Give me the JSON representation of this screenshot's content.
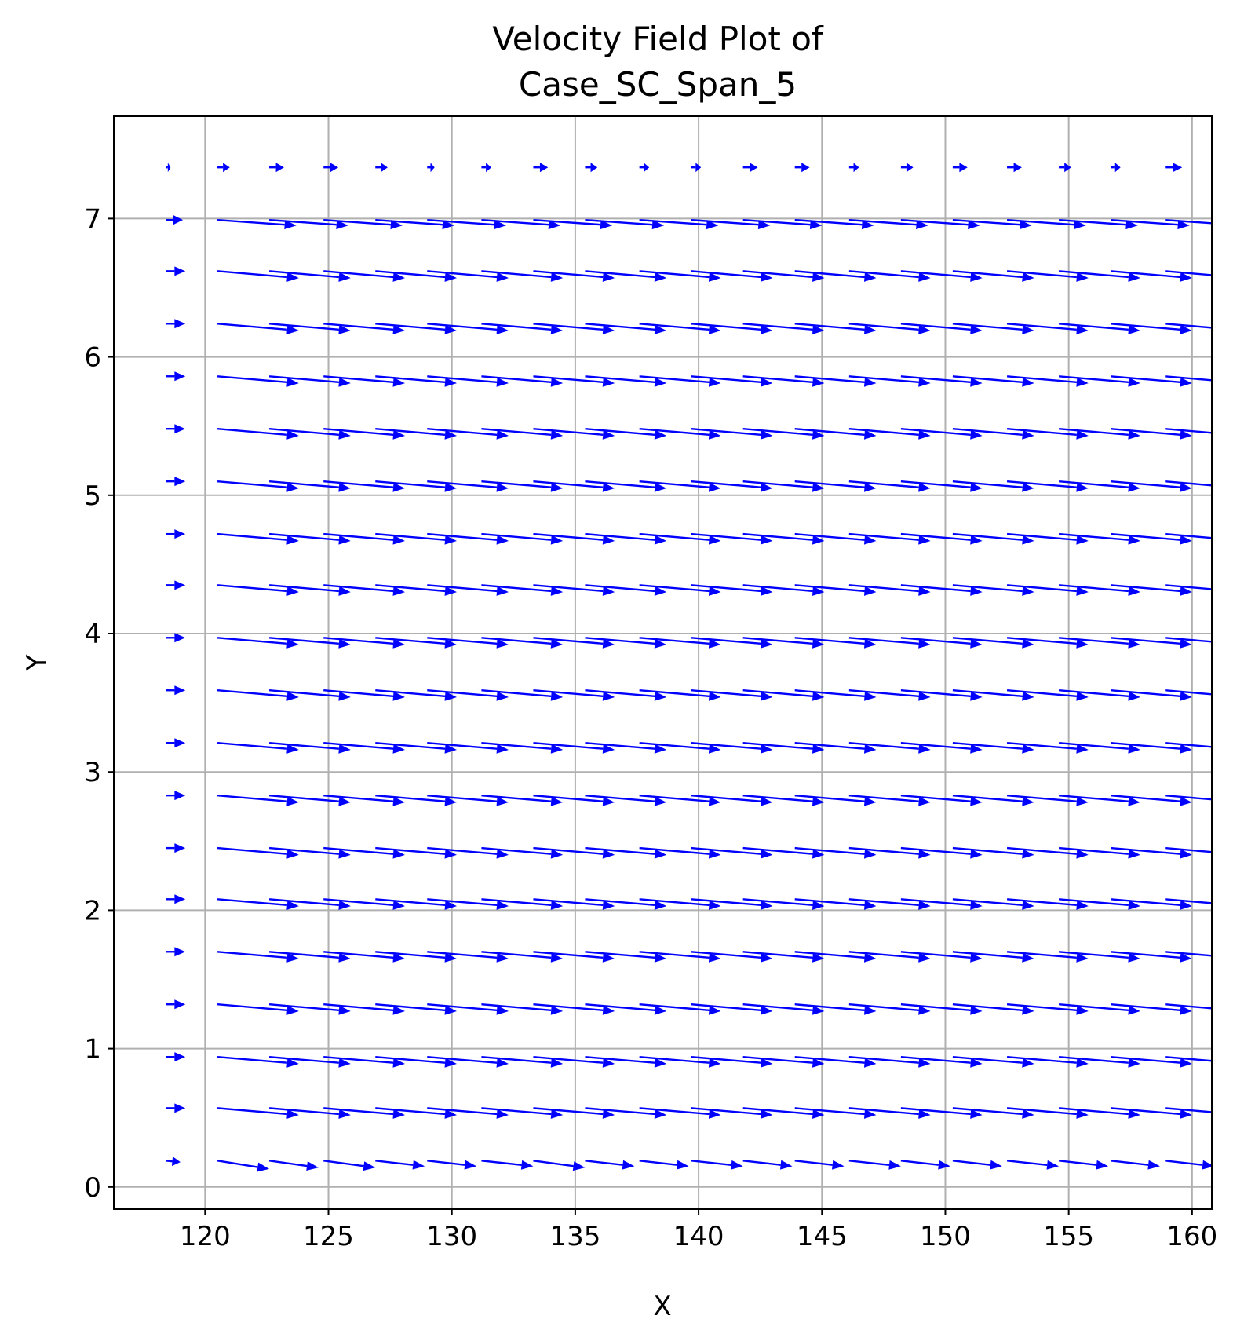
{
  "chart_data": {
    "type": "quiver",
    "title": [
      "Velocity Field Plot of",
      "Case_SC_Span_5"
    ],
    "xlabel": "X",
    "ylabel": "Y",
    "xlim": [
      116.3,
      160.8
    ],
    "ylim": [
      -0.16,
      7.74
    ],
    "grid": true,
    "arrow_color": "#0000ff",
    "grid_color": "#b0b0b0",
    "xticks": [
      120,
      125,
      130,
      135,
      140,
      145,
      150,
      155,
      160
    ],
    "xtick_labels": [
      "120",
      "125",
      "130",
      "135",
      "140",
      "145",
      "150",
      "155",
      "160"
    ],
    "yticks": [
      0,
      1,
      2,
      3,
      4,
      5,
      6,
      7
    ],
    "ytick_labels": [
      "0",
      "1",
      "2",
      "3",
      "4",
      "5",
      "6",
      "7"
    ],
    "x_positions": [
      118.4,
      120.5,
      122.6,
      124.8,
      126.9,
      129.0,
      131.2,
      133.3,
      135.4,
      137.6,
      139.7,
      141.8,
      143.9,
      146.1,
      148.2,
      150.3,
      152.5,
      154.6,
      156.7,
      158.9
    ],
    "y_positions": [
      0.19,
      0.57,
      0.94,
      1.32,
      1.7,
      2.08,
      2.45,
      2.83,
      3.21,
      3.59,
      3.97,
      4.35,
      4.72,
      5.1,
      5.48,
      5.86,
      6.24,
      6.62,
      6.99,
      7.37
    ],
    "rows": [
      {
        "u": [
          0.6,
          2.1,
          2.0,
          2.1,
          2.0,
          2.0,
          2.1,
          2.1,
          2.0,
          2.0,
          2.1,
          2.0,
          2.0,
          2.1,
          2.0,
          2.0,
          2.1,
          2.0,
          2.0,
          2.0
        ],
        "v": [
          -0.01,
          -0.06,
          -0.05,
          -0.05,
          -0.04,
          -0.04,
          -0.04,
          -0.05,
          -0.04,
          -0.04,
          -0.04,
          -0.04,
          -0.04,
          -0.04,
          -0.04,
          -0.04,
          -0.04,
          -0.04,
          -0.04,
          -0.04
        ]
      },
      {
        "u": [
          0.8,
          3.3,
          3.3,
          3.3,
          3.3,
          3.3,
          3.3,
          3.3,
          3.3,
          3.3,
          3.3,
          3.3,
          3.3,
          3.3,
          3.3,
          3.3,
          3.3,
          3.3,
          3.3,
          3.3
        ],
        "v": [
          0.0,
          -0.05,
          -0.05,
          -0.05,
          -0.05,
          -0.05,
          -0.05,
          -0.05,
          -0.05,
          -0.05,
          -0.05,
          -0.05,
          -0.05,
          -0.05,
          -0.05,
          -0.05,
          -0.05,
          -0.05,
          -0.05,
          -0.05
        ]
      },
      {
        "u": [
          0.8,
          3.3,
          3.3,
          3.3,
          3.3,
          3.3,
          3.3,
          3.3,
          3.3,
          3.3,
          3.3,
          3.3,
          3.3,
          3.3,
          3.3,
          3.3,
          3.3,
          3.3,
          3.3,
          3.3
        ],
        "v": [
          0.0,
          -0.05,
          -0.05,
          -0.05,
          -0.05,
          -0.05,
          -0.05,
          -0.05,
          -0.05,
          -0.05,
          -0.05,
          -0.05,
          -0.05,
          -0.05,
          -0.05,
          -0.05,
          -0.05,
          -0.05,
          -0.05,
          -0.05
        ]
      },
      {
        "u": [
          0.8,
          3.3,
          3.3,
          3.3,
          3.3,
          3.3,
          3.3,
          3.3,
          3.3,
          3.3,
          3.3,
          3.3,
          3.3,
          3.3,
          3.3,
          3.3,
          3.3,
          3.3,
          3.3,
          3.3
        ],
        "v": [
          0.0,
          -0.05,
          -0.05,
          -0.05,
          -0.05,
          -0.05,
          -0.05,
          -0.05,
          -0.05,
          -0.05,
          -0.05,
          -0.05,
          -0.05,
          -0.05,
          -0.05,
          -0.05,
          -0.05,
          -0.05,
          -0.05,
          -0.05
        ]
      },
      {
        "u": [
          0.8,
          3.3,
          3.3,
          3.3,
          3.3,
          3.3,
          3.3,
          3.3,
          3.3,
          3.3,
          3.3,
          3.3,
          3.3,
          3.3,
          3.3,
          3.3,
          3.3,
          3.3,
          3.3,
          3.3
        ],
        "v": [
          0.0,
          -0.05,
          -0.05,
          -0.05,
          -0.05,
          -0.05,
          -0.05,
          -0.05,
          -0.05,
          -0.05,
          -0.05,
          -0.05,
          -0.05,
          -0.05,
          -0.05,
          -0.05,
          -0.05,
          -0.05,
          -0.05,
          -0.05
        ]
      },
      {
        "u": [
          0.8,
          3.3,
          3.3,
          3.3,
          3.3,
          3.3,
          3.3,
          3.3,
          3.3,
          3.3,
          3.3,
          3.3,
          3.3,
          3.3,
          3.3,
          3.3,
          3.3,
          3.3,
          3.3,
          3.3
        ],
        "v": [
          0.0,
          -0.05,
          -0.05,
          -0.05,
          -0.05,
          -0.05,
          -0.05,
          -0.05,
          -0.05,
          -0.05,
          -0.05,
          -0.05,
          -0.05,
          -0.05,
          -0.05,
          -0.05,
          -0.05,
          -0.05,
          -0.05,
          -0.05
        ]
      },
      {
        "u": [
          0.8,
          3.3,
          3.3,
          3.3,
          3.3,
          3.3,
          3.3,
          3.3,
          3.3,
          3.3,
          3.3,
          3.3,
          3.3,
          3.3,
          3.3,
          3.3,
          3.3,
          3.3,
          3.3,
          3.3
        ],
        "v": [
          0.0,
          -0.05,
          -0.05,
          -0.05,
          -0.05,
          -0.05,
          -0.05,
          -0.05,
          -0.05,
          -0.05,
          -0.05,
          -0.05,
          -0.05,
          -0.05,
          -0.05,
          -0.05,
          -0.05,
          -0.05,
          -0.05,
          -0.05
        ]
      },
      {
        "u": [
          0.8,
          3.3,
          3.3,
          3.3,
          3.3,
          3.3,
          3.3,
          3.3,
          3.3,
          3.3,
          3.3,
          3.3,
          3.3,
          3.3,
          3.3,
          3.3,
          3.3,
          3.3,
          3.3,
          3.3
        ],
        "v": [
          0.0,
          -0.05,
          -0.05,
          -0.05,
          -0.05,
          -0.05,
          -0.05,
          -0.05,
          -0.05,
          -0.05,
          -0.05,
          -0.05,
          -0.05,
          -0.05,
          -0.05,
          -0.05,
          -0.05,
          -0.05,
          -0.05,
          -0.05
        ]
      },
      {
        "u": [
          0.8,
          3.3,
          3.3,
          3.3,
          3.3,
          3.3,
          3.3,
          3.3,
          3.3,
          3.3,
          3.3,
          3.3,
          3.3,
          3.3,
          3.3,
          3.3,
          3.3,
          3.3,
          3.3,
          3.3
        ],
        "v": [
          0.0,
          -0.05,
          -0.05,
          -0.05,
          -0.05,
          -0.05,
          -0.05,
          -0.05,
          -0.05,
          -0.05,
          -0.05,
          -0.05,
          -0.05,
          -0.05,
          -0.05,
          -0.05,
          -0.05,
          -0.05,
          -0.05,
          -0.05
        ]
      },
      {
        "u": [
          0.8,
          3.3,
          3.3,
          3.3,
          3.3,
          3.3,
          3.3,
          3.3,
          3.3,
          3.3,
          3.3,
          3.3,
          3.3,
          3.3,
          3.3,
          3.3,
          3.3,
          3.3,
          3.3,
          3.3
        ],
        "v": [
          0.0,
          -0.05,
          -0.05,
          -0.05,
          -0.05,
          -0.05,
          -0.05,
          -0.05,
          -0.05,
          -0.05,
          -0.05,
          -0.05,
          -0.05,
          -0.05,
          -0.05,
          -0.05,
          -0.05,
          -0.05,
          -0.05,
          -0.05
        ]
      },
      {
        "u": [
          0.8,
          3.3,
          3.3,
          3.3,
          3.3,
          3.3,
          3.3,
          3.3,
          3.3,
          3.3,
          3.3,
          3.3,
          3.3,
          3.3,
          3.3,
          3.3,
          3.3,
          3.3,
          3.3,
          3.3
        ],
        "v": [
          0.0,
          -0.05,
          -0.05,
          -0.05,
          -0.05,
          -0.05,
          -0.05,
          -0.05,
          -0.05,
          -0.05,
          -0.05,
          -0.05,
          -0.05,
          -0.05,
          -0.05,
          -0.05,
          -0.05,
          -0.05,
          -0.05,
          -0.05
        ]
      },
      {
        "u": [
          0.8,
          3.3,
          3.3,
          3.3,
          3.3,
          3.3,
          3.3,
          3.3,
          3.3,
          3.3,
          3.3,
          3.3,
          3.3,
          3.3,
          3.3,
          3.3,
          3.3,
          3.3,
          3.3,
          3.3
        ],
        "v": [
          0.0,
          -0.05,
          -0.05,
          -0.05,
          -0.05,
          -0.05,
          -0.05,
          -0.05,
          -0.05,
          -0.05,
          -0.05,
          -0.05,
          -0.05,
          -0.05,
          -0.05,
          -0.05,
          -0.05,
          -0.05,
          -0.05,
          -0.05
        ]
      },
      {
        "u": [
          0.8,
          3.3,
          3.3,
          3.3,
          3.3,
          3.3,
          3.3,
          3.3,
          3.3,
          3.3,
          3.3,
          3.3,
          3.3,
          3.3,
          3.3,
          3.3,
          3.3,
          3.3,
          3.3,
          3.3
        ],
        "v": [
          0.0,
          -0.05,
          -0.05,
          -0.05,
          -0.05,
          -0.05,
          -0.05,
          -0.05,
          -0.05,
          -0.05,
          -0.05,
          -0.05,
          -0.05,
          -0.05,
          -0.05,
          -0.05,
          -0.05,
          -0.05,
          -0.05,
          -0.05
        ]
      },
      {
        "u": [
          0.8,
          3.3,
          3.3,
          3.3,
          3.3,
          3.3,
          3.3,
          3.3,
          3.3,
          3.3,
          3.3,
          3.3,
          3.3,
          3.3,
          3.3,
          3.3,
          3.3,
          3.3,
          3.3,
          3.3
        ],
        "v": [
          0.0,
          -0.05,
          -0.05,
          -0.05,
          -0.05,
          -0.05,
          -0.05,
          -0.05,
          -0.05,
          -0.05,
          -0.05,
          -0.05,
          -0.05,
          -0.05,
          -0.05,
          -0.05,
          -0.05,
          -0.05,
          -0.05,
          -0.05
        ]
      },
      {
        "u": [
          0.8,
          3.3,
          3.3,
          3.3,
          3.3,
          3.3,
          3.3,
          3.3,
          3.3,
          3.3,
          3.3,
          3.3,
          3.3,
          3.3,
          3.3,
          3.3,
          3.3,
          3.3,
          3.3,
          3.3
        ],
        "v": [
          0.0,
          -0.05,
          -0.05,
          -0.05,
          -0.05,
          -0.05,
          -0.05,
          -0.05,
          -0.05,
          -0.05,
          -0.05,
          -0.05,
          -0.05,
          -0.05,
          -0.05,
          -0.05,
          -0.05,
          -0.05,
          -0.05,
          -0.05
        ]
      },
      {
        "u": [
          0.8,
          3.3,
          3.3,
          3.3,
          3.3,
          3.3,
          3.3,
          3.3,
          3.3,
          3.3,
          3.3,
          3.3,
          3.3,
          3.3,
          3.3,
          3.3,
          3.3,
          3.3,
          3.3,
          3.3
        ],
        "v": [
          0.0,
          -0.05,
          -0.05,
          -0.05,
          -0.05,
          -0.05,
          -0.05,
          -0.05,
          -0.05,
          -0.05,
          -0.05,
          -0.05,
          -0.05,
          -0.05,
          -0.05,
          -0.05,
          -0.05,
          -0.05,
          -0.05,
          -0.05
        ]
      },
      {
        "u": [
          0.8,
          3.3,
          3.3,
          3.3,
          3.3,
          3.3,
          3.3,
          3.3,
          3.3,
          3.3,
          3.3,
          3.3,
          3.3,
          3.3,
          3.3,
          3.3,
          3.3,
          3.3,
          3.3,
          3.3
        ],
        "v": [
          0.0,
          -0.05,
          -0.05,
          -0.05,
          -0.05,
          -0.05,
          -0.05,
          -0.05,
          -0.05,
          -0.05,
          -0.05,
          -0.05,
          -0.05,
          -0.05,
          -0.05,
          -0.05,
          -0.05,
          -0.05,
          -0.05,
          -0.05
        ]
      },
      {
        "u": [
          0.8,
          3.3,
          3.3,
          3.3,
          3.3,
          3.3,
          3.3,
          3.3,
          3.3,
          3.3,
          3.3,
          3.3,
          3.3,
          3.3,
          3.3,
          3.3,
          3.3,
          3.3,
          3.3,
          3.3
        ],
        "v": [
          0.0,
          -0.05,
          -0.05,
          -0.05,
          -0.05,
          -0.05,
          -0.05,
          -0.05,
          -0.05,
          -0.05,
          -0.05,
          -0.05,
          -0.05,
          -0.05,
          -0.05,
          -0.05,
          -0.05,
          -0.05,
          -0.05,
          -0.05
        ]
      },
      {
        "u": [
          0.7,
          3.2,
          3.2,
          3.2,
          3.2,
          3.2,
          3.2,
          3.2,
          3.2,
          3.2,
          3.2,
          3.2,
          3.2,
          3.2,
          3.2,
          3.2,
          3.2,
          3.2,
          3.2,
          3.2
        ],
        "v": [
          0.0,
          -0.04,
          -0.04,
          -0.04,
          -0.04,
          -0.04,
          -0.04,
          -0.04,
          -0.04,
          -0.04,
          -0.04,
          -0.04,
          -0.04,
          -0.04,
          -0.04,
          -0.04,
          -0.04,
          -0.04,
          -0.04,
          -0.04
        ]
      },
      {
        "u": [
          0.2,
          0.5,
          0.6,
          0.6,
          0.5,
          0.3,
          0.4,
          0.6,
          0.5,
          0.4,
          0.4,
          0.6,
          0.6,
          0.4,
          0.5,
          0.6,
          0.6,
          0.5,
          0.4,
          0.7
        ],
        "v": [
          0.0,
          0.0,
          0.0,
          0.0,
          0.0,
          0.0,
          0.0,
          0.0,
          0.0,
          0.0,
          0.0,
          0.0,
          0.0,
          0.0,
          0.0,
          0.0,
          0.0,
          0.0,
          0.0,
          0.0
        ]
      }
    ]
  }
}
